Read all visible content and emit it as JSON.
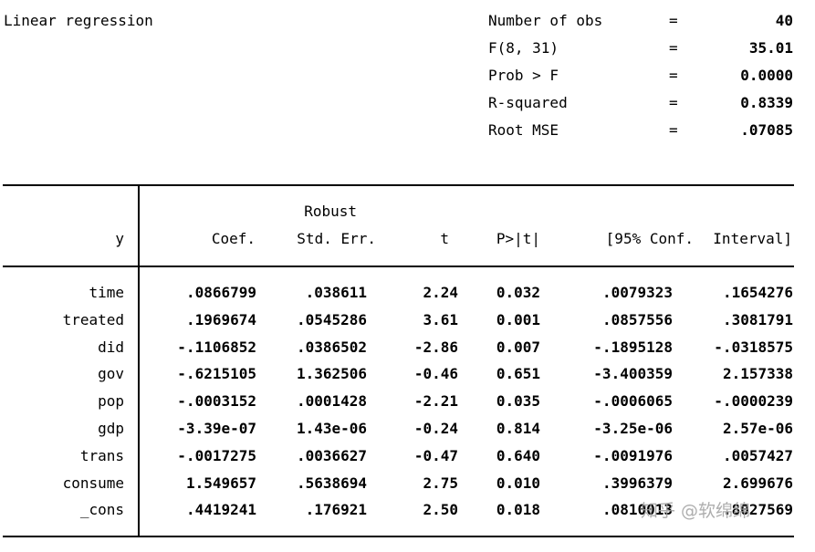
{
  "title": "Linear regression",
  "stats": [
    {
      "label": "Number of obs",
      "eq": "=",
      "value": "40"
    },
    {
      "label": "F(8, 31)",
      "eq": "=",
      "value": "35.01"
    },
    {
      "label": "Prob > F",
      "eq": "=",
      "value": "0.0000"
    },
    {
      "label": "R-squared",
      "eq": "=",
      "value": "0.8339"
    },
    {
      "label": "Root MSE",
      "eq": "=",
      "value": ".07085"
    }
  ],
  "header": {
    "y": "y",
    "robust": "Robust",
    "coef": "Coef.",
    "stderr": "Std. Err.",
    "t": "t",
    "p": "P>|t|",
    "ci_low": "[95% Conf.",
    "ci_high": "Interval]"
  },
  "rows": [
    {
      "var": "time",
      "coef": ".0866799",
      "se": ".038611",
      "t": "2.24",
      "p": "0.032",
      "lo": ".0079323",
      "hi": ".1654276"
    },
    {
      "var": "treated",
      "coef": ".1969674",
      "se": ".0545286",
      "t": "3.61",
      "p": "0.001",
      "lo": ".0857556",
      "hi": ".3081791"
    },
    {
      "var": "did",
      "coef": "-.1106852",
      "se": ".0386502",
      "t": "-2.86",
      "p": "0.007",
      "lo": "-.1895128",
      "hi": "-.0318575"
    },
    {
      "var": "gov",
      "coef": "-.6215105",
      "se": "1.362506",
      "t": "-0.46",
      "p": "0.651",
      "lo": "-3.400359",
      "hi": "2.157338"
    },
    {
      "var": "pop",
      "coef": "-.0003152",
      "se": ".0001428",
      "t": "-2.21",
      "p": "0.035",
      "lo": "-.0006065",
      "hi": "-.0000239"
    },
    {
      "var": "gdp",
      "coef": "-3.39e-07",
      "se": "1.43e-06",
      "t": "-0.24",
      "p": "0.814",
      "lo": "-3.25e-06",
      "hi": "2.57e-06"
    },
    {
      "var": "trans",
      "coef": "-.0017275",
      "se": ".0036627",
      "t": "-0.47",
      "p": "0.640",
      "lo": "-.0091976",
      "hi": ".0057427"
    },
    {
      "var": "consume",
      "coef": "1.549657",
      "se": ".5638694",
      "t": "2.75",
      "p": "0.010",
      "lo": ".3996379",
      "hi": "2.699676"
    },
    {
      "var": "_cons",
      "coef": ".4419241",
      "se": ".176921",
      "t": "2.50",
      "p": "0.018",
      "lo": ".0810013",
      "hi": ".8027569"
    }
  ],
  "watermark": "知乎 @软绵绵"
}
